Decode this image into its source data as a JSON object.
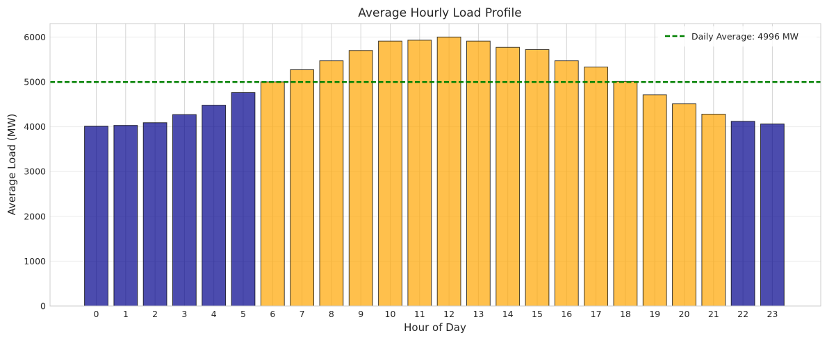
{
  "chart_data": {
    "type": "bar",
    "title": "Average Hourly Load Profile",
    "xlabel": "Hour of Day",
    "ylabel": "Average Load (MW)",
    "categories": [
      "0",
      "1",
      "2",
      "3",
      "4",
      "5",
      "6",
      "7",
      "8",
      "9",
      "10",
      "11",
      "12",
      "13",
      "14",
      "15",
      "16",
      "17",
      "18",
      "19",
      "20",
      "21",
      "22",
      "23"
    ],
    "values": [
      4010,
      4030,
      4090,
      4270,
      4480,
      4760,
      5000,
      5270,
      5470,
      5700,
      5910,
      5930,
      6000,
      5910,
      5770,
      5720,
      5470,
      5330,
      5010,
      4710,
      4510,
      4280,
      4120,
      4060
    ],
    "peak_hours": [
      "6",
      "7",
      "8",
      "9",
      "10",
      "11",
      "12",
      "13",
      "14",
      "15",
      "16",
      "17",
      "18",
      "19",
      "20",
      "21"
    ],
    "ylim": [
      0,
      6300
    ],
    "yticks": [
      0,
      1000,
      2000,
      3000,
      4000,
      5000,
      6000
    ],
    "grid": true,
    "colors": {
      "offpeak": "#00008b",
      "peak": "#ffa500",
      "average_line": "#008000",
      "edge": "#000000"
    },
    "average_line": {
      "value": 4996,
      "label": "Daily Average: 4996 MW"
    },
    "legend_position": "top-right"
  }
}
